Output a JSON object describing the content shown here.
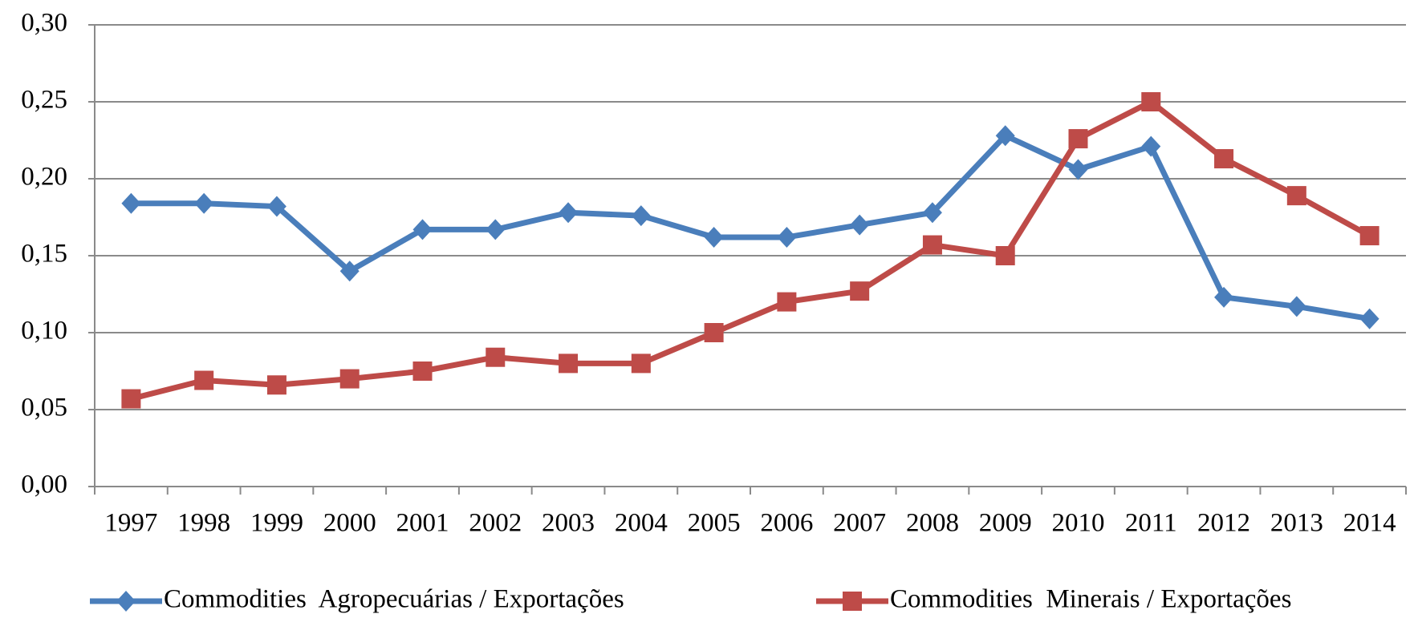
{
  "chart_data": {
    "type": "line",
    "categories": [
      "1997",
      "1998",
      "1999",
      "2000",
      "2001",
      "2002",
      "2003",
      "2004",
      "2005",
      "2006",
      "2007",
      "2008",
      "2009",
      "2010",
      "2011",
      "2012",
      "2013",
      "2014"
    ],
    "series": [
      {
        "name": "Commodities  Agropecuárias / Exportações",
        "color": "#4a7ebb",
        "marker": "diamond",
        "values": [
          0.184,
          0.184,
          0.182,
          0.14,
          0.167,
          0.167,
          0.178,
          0.176,
          0.162,
          0.162,
          0.17,
          0.178,
          0.228,
          0.206,
          0.221,
          0.123,
          0.117,
          0.109
        ]
      },
      {
        "name": "Commodities  Minerais / Exportações",
        "color": "#be4b48",
        "marker": "square",
        "values": [
          0.057,
          0.069,
          0.066,
          0.07,
          0.075,
          0.084,
          0.08,
          0.08,
          0.1,
          0.12,
          0.127,
          0.157,
          0.15,
          0.226,
          0.25,
          0.213,
          0.189,
          0.163
        ]
      }
    ],
    "ylim": [
      0,
      0.3
    ],
    "yticks": [
      {
        "value": 0,
        "label": "0,00"
      },
      {
        "value": 0.05,
        "label": "0,05"
      },
      {
        "value": 0.1,
        "label": "0,10"
      },
      {
        "value": 0.15,
        "label": "0,15"
      },
      {
        "value": 0.2,
        "label": "0,20"
      },
      {
        "value": 0.25,
        "label": "0,25"
      },
      {
        "value": 0.3,
        "label": "0,30"
      }
    ],
    "grid": true,
    "legend": "bottom"
  }
}
